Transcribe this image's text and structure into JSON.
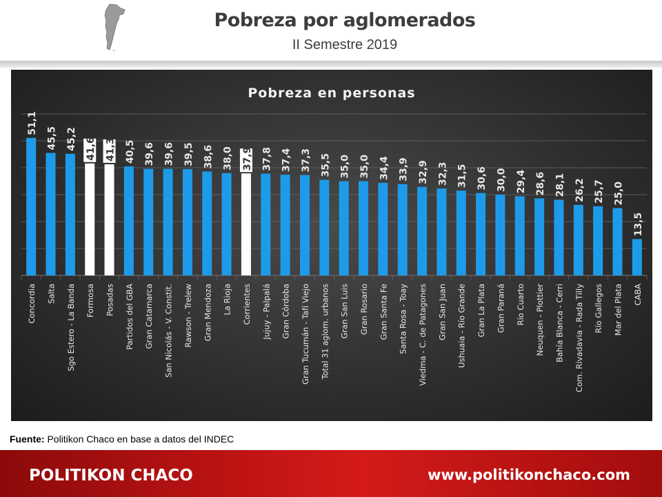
{
  "header": {
    "title": "Pobreza por aglomerados",
    "subtitle": "II Semestre 2019",
    "map_icon": "argentina-map-icon"
  },
  "chart_data": {
    "type": "bar",
    "title": "Pobreza en personas",
    "xlabel": "",
    "ylabel": "",
    "ylim": [
      0,
      60
    ],
    "grid": true,
    "legend": "none",
    "colors": {
      "default": "#1e9be8",
      "highlight": "#ffffff",
      "label": "#e8e8e8",
      "grid": "#6a6a6a"
    },
    "highlighted": [
      "Formosa",
      "Posadas",
      "Corrientes"
    ],
    "categories": [
      "Concordia",
      "Salta",
      "Sgo Estero - La Banda",
      "Formosa",
      "Posadas",
      "Partidos del GBA",
      "Gran Catamarca",
      "San Nicolás - V. Constit.",
      "Rawson - Trelew",
      "Gran Mendoza",
      "La Rioja",
      "Corrientes",
      "Jujuy - Palpalá",
      "Gran Córdoba",
      "Gran Tucumán - Tafí Viejo",
      "Total 31 aglom. urbanos",
      "Gran San Luis",
      "Gran Rosario",
      "Gran Santa Fe",
      "Santa Rosa - Toay",
      "Viedma - C. de Patagones",
      "Gran San Juan",
      "Ushuaia - Río Grande",
      "Gran La Plata",
      "Gran Paraná",
      "Río Cuarto",
      "Neuquen - Plottier",
      "Bahía Blanca - Cerri",
      "Com. Rivadavia - Rada Tilly",
      "Río Gallegos",
      "Mar del Plata",
      "CABA"
    ],
    "values": [
      51.1,
      45.5,
      45.2,
      41.6,
      41.3,
      40.5,
      39.6,
      39.6,
      39.5,
      38.6,
      38.0,
      37.9,
      37.8,
      37.4,
      37.3,
      35.5,
      35.0,
      35.0,
      34.4,
      33.9,
      32.9,
      32.3,
      31.5,
      30.6,
      30.0,
      29.4,
      28.6,
      28.1,
      26.2,
      25.7,
      25.0,
      13.5
    ],
    "value_labels": [
      "51,1",
      "45,5",
      "45,2",
      "41,6",
      "41,3",
      "40,5",
      "39,6",
      "39,6",
      "39,5",
      "38,6",
      "38,0",
      "37,9",
      "37,8",
      "37,4",
      "37,3",
      "35,5",
      "35,0",
      "35,0",
      "34,4",
      "33,9",
      "32,9",
      "32,3",
      "31,5",
      "30,6",
      "30,0",
      "29,4",
      "28,6",
      "28,1",
      "26,2",
      "25,7",
      "25,0",
      "13,5"
    ]
  },
  "source": {
    "label": "Fuente:",
    "text": " Politikon Chaco en base a datos del INDEC"
  },
  "footer": {
    "brand": "POLITIKON CHACO",
    "url": "www.politikonchaco.com"
  }
}
